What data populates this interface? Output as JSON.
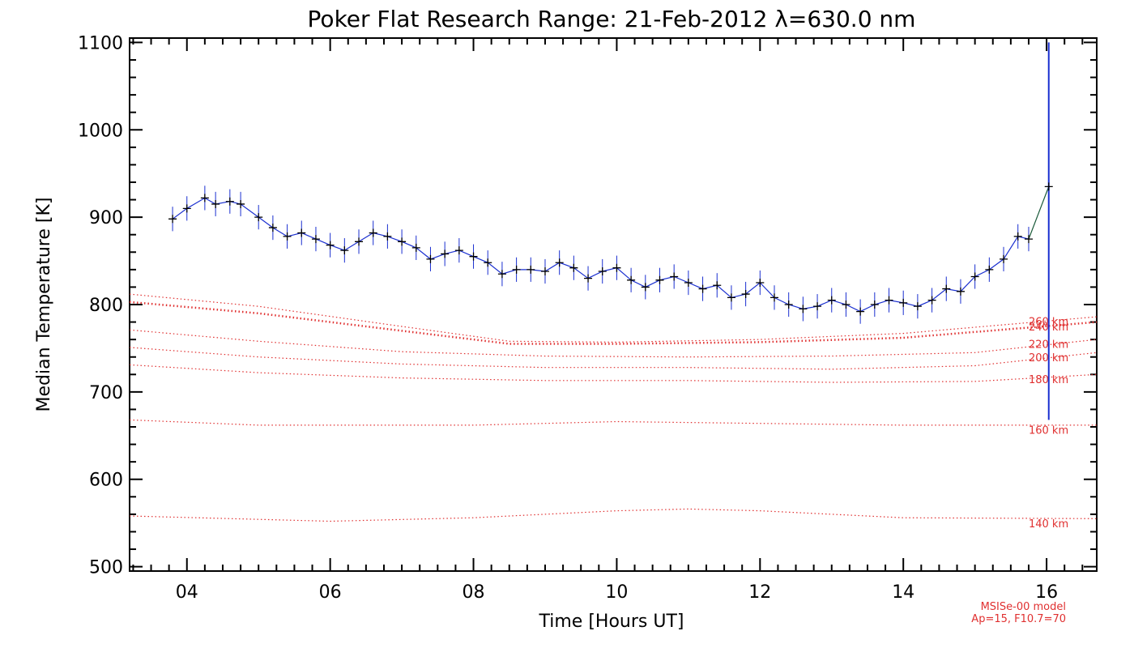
{
  "chart_data": {
    "type": "line",
    "title": "Poker Flat Research Range: 21-Feb-2012 λ=630.0 nm",
    "xlabel": "Time [Hours UT]",
    "ylabel": "Median Temperature [K]",
    "xlim": [
      3.2,
      16.7
    ],
    "ylim": [
      495,
      1105
    ],
    "x_ticks": [
      4,
      6,
      8,
      10,
      12,
      14,
      16
    ],
    "x_tick_labels": [
      "04",
      "06",
      "08",
      "10",
      "12",
      "14",
      "16"
    ],
    "y_ticks": [
      500,
      600,
      700,
      800,
      900,
      1000,
      1100
    ],
    "y_tick_labels": [
      "500",
      "600",
      "700",
      "800",
      "900",
      "1000",
      "1100"
    ],
    "grid": false,
    "colors": {
      "measured": "#1a2fd0",
      "median": "#000000",
      "model": "#e03030"
    },
    "measured": {
      "x": [
        3.8,
        4.0,
        4.25,
        4.4,
        4.6,
        4.75,
        5.0,
        5.2,
        5.4,
        5.6,
        5.8,
        6.0,
        6.2,
        6.4,
        6.6,
        6.8,
        7.0,
        7.2,
        7.4,
        7.6,
        7.8,
        8.0,
        8.2,
        8.4,
        8.6,
        8.8,
        9.0,
        9.2,
        9.4,
        9.6,
        9.8,
        10.0,
        10.2,
        10.4,
        10.6,
        10.8,
        11.0,
        11.2,
        11.4,
        11.6,
        11.8,
        12.0,
        12.2,
        12.4,
        12.6,
        12.8,
        13.0,
        13.2,
        13.4,
        13.6,
        13.8,
        14.0,
        14.2,
        14.4,
        14.6,
        14.8,
        15.0,
        15.2,
        15.4,
        15.6,
        15.75,
        16.03
      ],
      "y": [
        898,
        910,
        922,
        915,
        918,
        915,
        900,
        888,
        878,
        882,
        875,
        868,
        862,
        872,
        882,
        878,
        872,
        865,
        852,
        858,
        862,
        855,
        848,
        835,
        840,
        840,
        838,
        848,
        842,
        830,
        838,
        842,
        828,
        820,
        828,
        832,
        825,
        818,
        822,
        808,
        812,
        825,
        808,
        800,
        795,
        798,
        805,
        800,
        792,
        800,
        805,
        802,
        798,
        805,
        818,
        815,
        832,
        840,
        852,
        878,
        875,
        935
      ],
      "error_bar": {
        "x": 16.03,
        "low": 668,
        "high": 1100
      }
    },
    "model_name": "MSISe-00 model",
    "model_params": "Ap=15, F10.7=70",
    "model_series": [
      {
        "name": "140 km",
        "x": [
          3.2,
          6,
          8,
          10,
          11,
          12,
          14,
          16.7
        ],
        "values": [
          558,
          552,
          556,
          564,
          566,
          564,
          556,
          555
        ]
      },
      {
        "name": "160 km",
        "x": [
          3.2,
          5,
          8,
          10,
          12,
          14,
          16.7
        ],
        "values": [
          668,
          662,
          662,
          666,
          664,
          662,
          662
        ]
      },
      {
        "name": "180 km",
        "x": [
          3.2,
          5,
          7,
          9,
          11,
          13,
          15,
          16.7
        ],
        "values": [
          731,
          722,
          716,
          713,
          713,
          711,
          712,
          720
        ]
      },
      {
        "name": "200 km",
        "x": [
          3.2,
          5,
          7,
          9,
          11,
          13,
          15,
          16.7
        ],
        "values": [
          751,
          740,
          732,
          728,
          728,
          726,
          730,
          745
        ]
      },
      {
        "name": "220 km",
        "x": [
          3.2,
          5,
          7,
          9,
          11,
          13,
          15,
          16.7
        ],
        "values": [
          771,
          758,
          746,
          741,
          740,
          741,
          745,
          760
        ]
      },
      {
        "name": "240 km",
        "x": [
          3.2,
          5,
          7,
          8.5,
          10,
          12,
          14,
          16.7
        ],
        "values": [
          803,
          790,
          770,
          755,
          755,
          757,
          762,
          780
        ]
      },
      {
        "name": "260 km",
        "x": [
          3.2,
          5,
          7,
          8.5,
          10,
          12,
          14,
          16.7
        ],
        "values": [
          812,
          798,
          775,
          758,
          757,
          760,
          767,
          786
        ]
      }
    ]
  }
}
